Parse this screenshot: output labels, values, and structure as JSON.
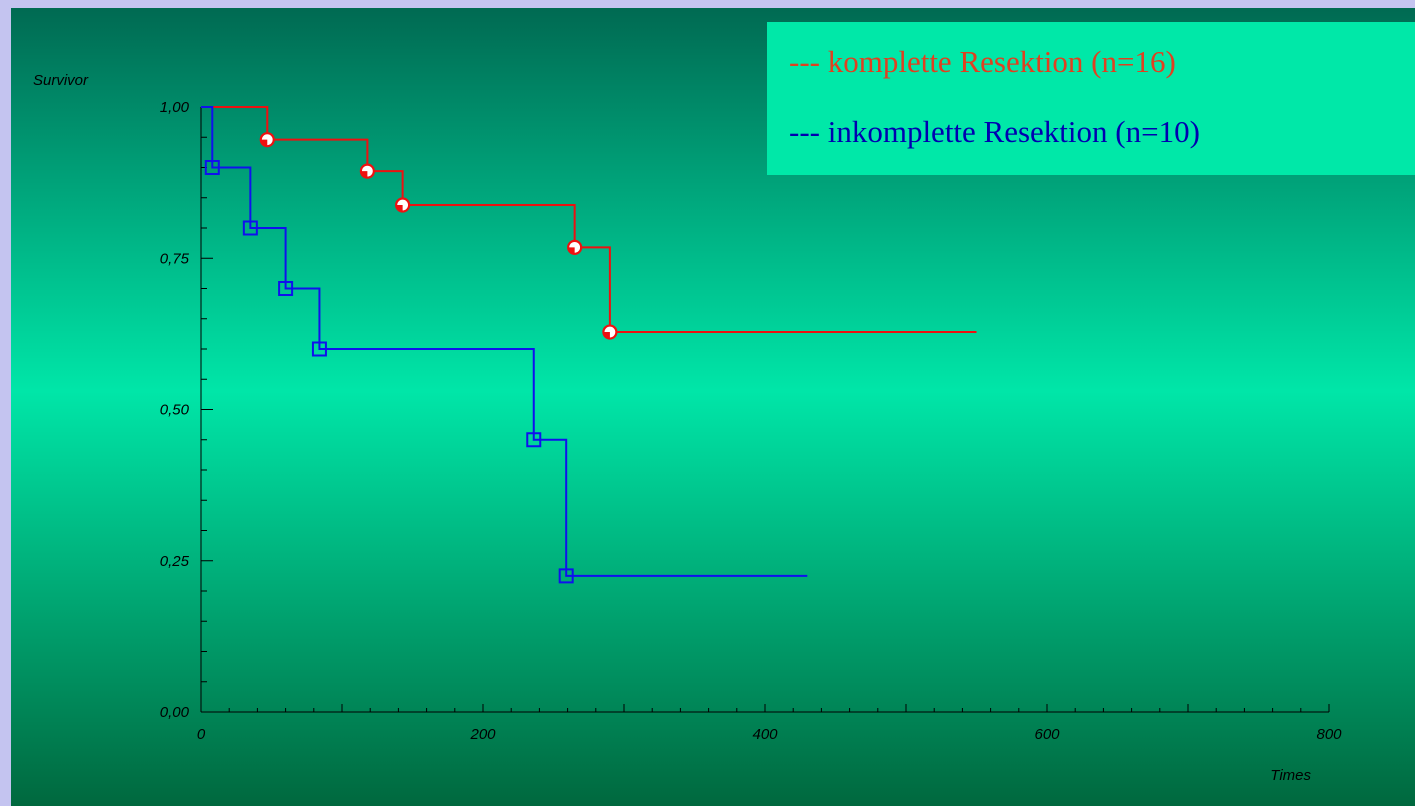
{
  "chart_data": {
    "type": "line",
    "subtype": "kaplan-meier-step",
    "ylabel": "Survivor",
    "xlabel": "Times",
    "xlim": [
      0,
      800
    ],
    "ylim": [
      0,
      1
    ],
    "x_ticks": [
      {
        "value": 0,
        "label": "0"
      },
      {
        "value": 200,
        "label": "200"
      },
      {
        "value": 400,
        "label": "400"
      },
      {
        "value": 600,
        "label": "600"
      },
      {
        "value": 800,
        "label": "800"
      }
    ],
    "y_ticks": [
      {
        "value": 0,
        "label": "0,00"
      },
      {
        "value": 0.25,
        "label": "0,25"
      },
      {
        "value": 0.5,
        "label": "0,50"
      },
      {
        "value": 0.75,
        "label": "0,75"
      },
      {
        "value": 1,
        "label": "1,00"
      }
    ],
    "grid": false,
    "legend_position": "top-right",
    "series": [
      {
        "name": "--- komplette Resektion (n=16)",
        "color": "#ee1010",
        "marker": "circle",
        "steps": [
          {
            "x": 0,
            "y": 1.0
          },
          {
            "x": 40,
            "y": 1.0
          },
          {
            "x": 47,
            "y": 0.946
          },
          {
            "x": 118,
            "y": 0.894
          },
          {
            "x": 143,
            "y": 0.838
          },
          {
            "x": 265,
            "y": 0.768
          },
          {
            "x": 290,
            "y": 0.628
          }
        ],
        "end_x": 550,
        "markers": [
          {
            "x": 47,
            "y": 0.946
          },
          {
            "x": 118,
            "y": 0.894
          },
          {
            "x": 143,
            "y": 0.838
          },
          {
            "x": 265,
            "y": 0.768
          },
          {
            "x": 290,
            "y": 0.628
          }
        ]
      },
      {
        "name": "--- inkomplette Resektion (n=10)",
        "color": "#1010ee",
        "marker": "square",
        "steps": [
          {
            "x": 0,
            "y": 1.0
          },
          {
            "x": 8,
            "y": 0.9
          },
          {
            "x": 35,
            "y": 0.8
          },
          {
            "x": 60,
            "y": 0.7
          },
          {
            "x": 84,
            "y": 0.6
          },
          {
            "x": 236,
            "y": 0.45
          },
          {
            "x": 259,
            "y": 0.225
          }
        ],
        "end_x": 430,
        "markers": [
          {
            "x": 8,
            "y": 0.9
          },
          {
            "x": 35,
            "y": 0.8
          },
          {
            "x": 60,
            "y": 0.7
          },
          {
            "x": 84,
            "y": 0.6
          },
          {
            "x": 236,
            "y": 0.45
          },
          {
            "x": 259,
            "y": 0.225
          }
        ]
      }
    ]
  },
  "legend": {
    "komplett_label": "--- komplette Resektion (n=16)",
    "inkomplett_label": "--- inkomplette Resektion (n=10)"
  },
  "colors": {
    "background_top": "#006a52",
    "background_mid": "#00e6a8",
    "background_bottom": "#00683e",
    "legend_background": "#00e8a8",
    "frame": "#c4c4f0"
  }
}
